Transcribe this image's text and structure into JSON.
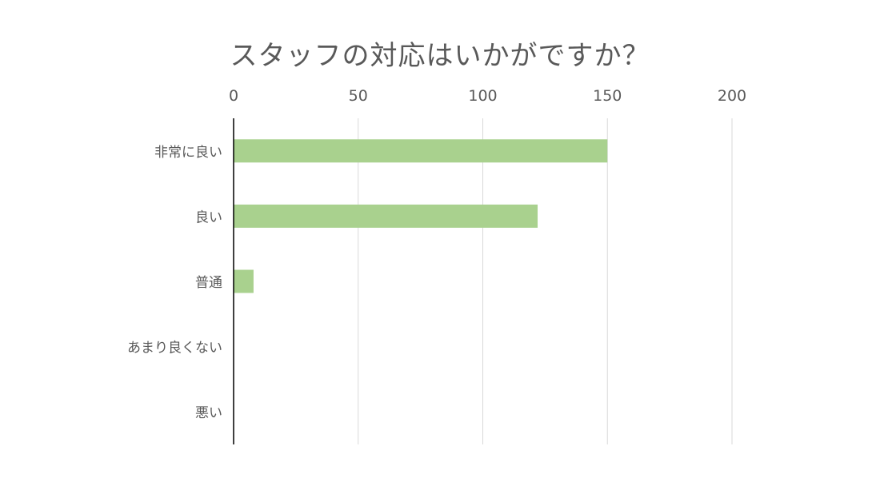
{
  "chart_data": {
    "type": "bar",
    "orientation": "horizontal",
    "title": "スタッフの対応はいかがですか？",
    "xlabel": "",
    "ylabel": "",
    "categories": [
      "非常に良い",
      "良い",
      "普通",
      "あまり良くない",
      "悪い"
    ],
    "values": [
      150,
      122,
      8,
      0,
      0
    ],
    "xlim": [
      0,
      200
    ],
    "x_ticks": [
      0,
      50,
      100,
      150,
      200
    ],
    "x_axis_position": "top",
    "grid": true,
    "legend": "none",
    "bar_color": "#a9d18e",
    "gridline_color": "#d9d9d9",
    "axis_line_color": "#000000",
    "text_color": "#595959"
  }
}
